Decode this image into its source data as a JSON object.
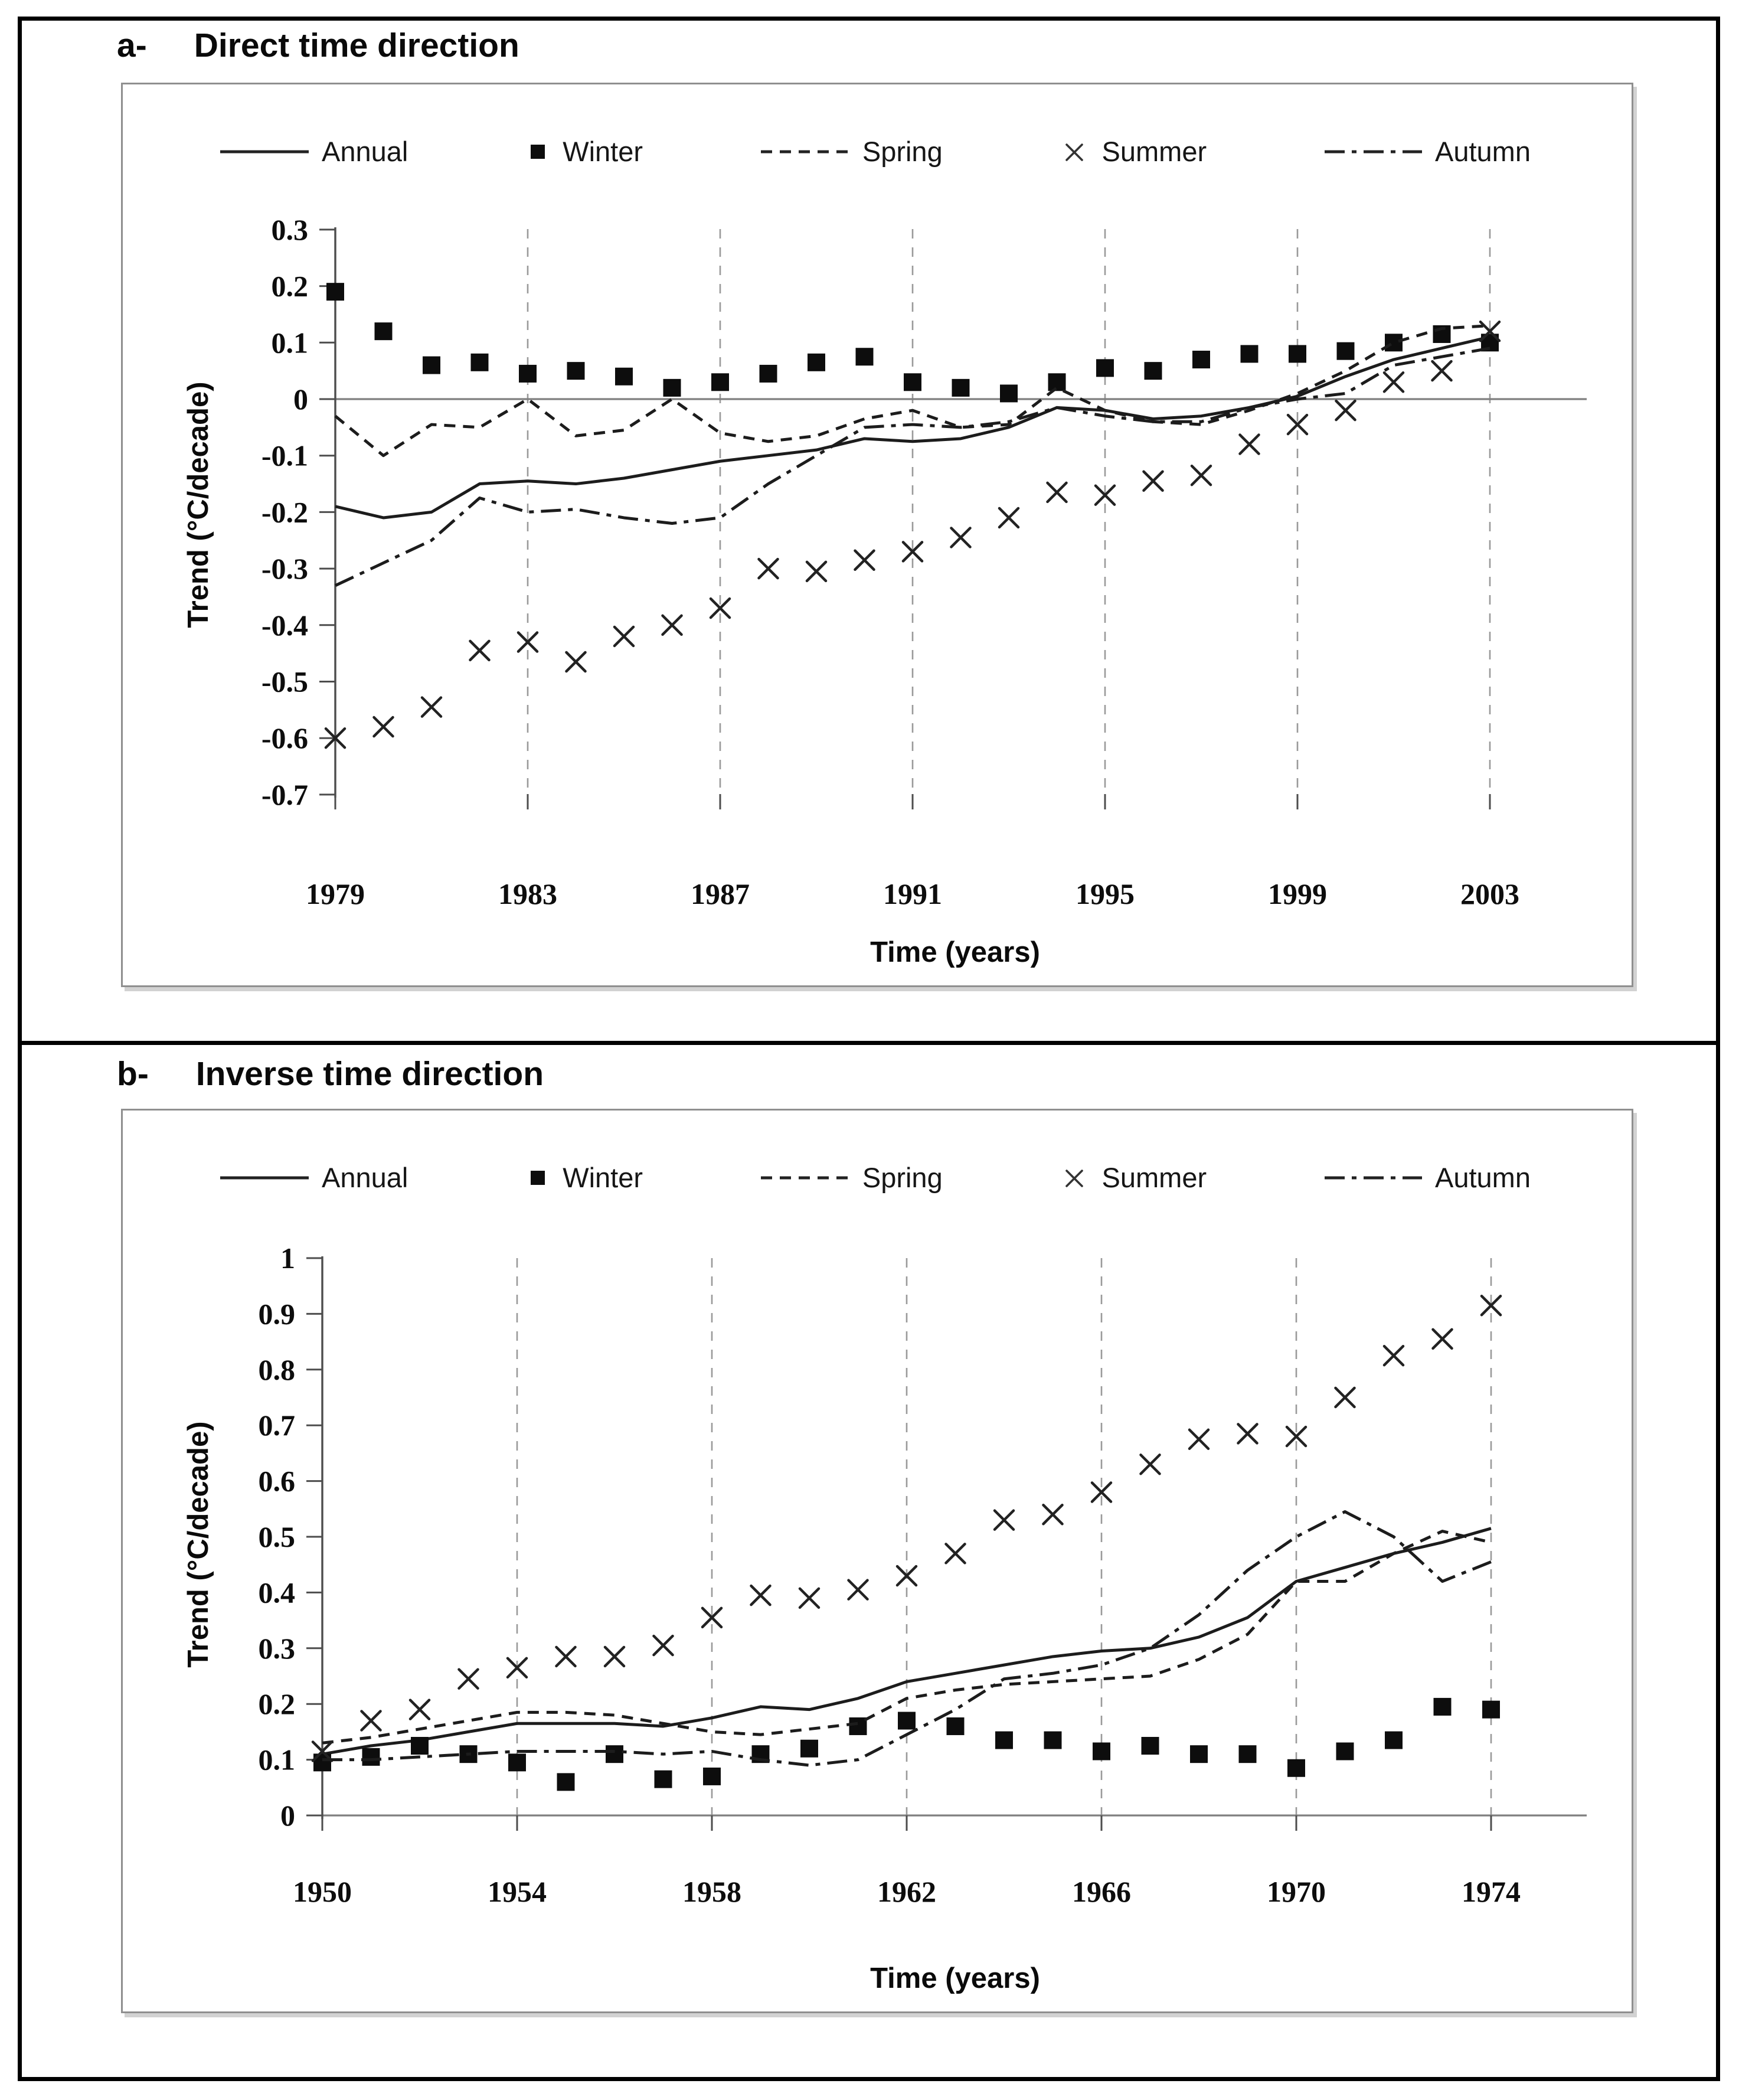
{
  "figure": {
    "ink_color": "#1c1c1c",
    "grid_color": "#9a9a9a",
    "zero_line_color": "#7f7f7f",
    "axis_color": "#4d4d4d"
  },
  "chart_data": [
    {
      "type": "line",
      "panel_label": "a-",
      "title": "Direct time direction",
      "xlabel": "Time (years)",
      "ylabel": "Trend (°C/decade)",
      "ylim": [
        -0.7,
        0.3
      ],
      "grid": "vertical-dashed",
      "legend_position": "top-center",
      "yticks": [
        "0.3",
        "0.2",
        "0.1",
        "0",
        "-0.1",
        "-0.2",
        "-0.3",
        "-0.4",
        "-0.5",
        "-0.6",
        "-0.7"
      ],
      "xticks": [
        1979,
        1983,
        1987,
        1991,
        1995,
        1999,
        2003
      ],
      "grid_years": [
        1983,
        1987,
        1991,
        1995,
        1999,
        2003
      ],
      "years": [
        1979,
        1980,
        1981,
        1982,
        1983,
        1984,
        1985,
        1986,
        1987,
        1988,
        1989,
        1990,
        1991,
        1992,
        1993,
        1994,
        1995,
        1996,
        1997,
        1998,
        1999,
        2000,
        2001,
        2002,
        2003
      ],
      "series": [
        {
          "name": "Annual",
          "style": "solid",
          "values": [
            -0.19,
            -0.21,
            -0.2,
            -0.15,
            -0.145,
            -0.15,
            -0.14,
            -0.125,
            -0.11,
            -0.1,
            -0.09,
            -0.07,
            -0.075,
            -0.07,
            -0.05,
            -0.015,
            -0.02,
            -0.035,
            -0.03,
            -0.015,
            0.005,
            0.04,
            0.07,
            0.09,
            0.11
          ]
        },
        {
          "name": "Winter",
          "style": "squares",
          "values": [
            0.19,
            0.12,
            0.06,
            0.065,
            0.045,
            0.05,
            0.04,
            0.02,
            0.03,
            0.045,
            0.065,
            0.075,
            0.03,
            0.02,
            0.01,
            0.03,
            0.055,
            0.05,
            0.07,
            0.08,
            0.08,
            0.085,
            0.1,
            0.115,
            0.1
          ]
        },
        {
          "name": "Spring",
          "style": "dashed",
          "values": [
            -0.03,
            -0.1,
            -0.045,
            -0.05,
            0.0,
            -0.065,
            -0.055,
            0.0,
            -0.06,
            -0.075,
            -0.065,
            -0.035,
            -0.02,
            -0.05,
            -0.045,
            0.02,
            -0.02,
            -0.04,
            -0.045,
            -0.02,
            0.01,
            0.05,
            0.1,
            0.125,
            0.13
          ]
        },
        {
          "name": "Summer",
          "style": "x-markers",
          "values": [
            -0.6,
            -0.58,
            -0.545,
            -0.445,
            -0.43,
            -0.465,
            -0.42,
            -0.4,
            -0.37,
            -0.3,
            -0.305,
            -0.285,
            -0.27,
            -0.245,
            -0.21,
            -0.165,
            -0.17,
            -0.145,
            -0.135,
            -0.08,
            -0.045,
            -0.02,
            0.03,
            0.05,
            0.12
          ]
        },
        {
          "name": "Autumn",
          "style": "dashdot",
          "values": [
            -0.33,
            -0.29,
            -0.25,
            -0.175,
            -0.2,
            -0.195,
            -0.21,
            -0.22,
            -0.21,
            -0.15,
            -0.1,
            -0.05,
            -0.045,
            -0.05,
            -0.04,
            -0.015,
            -0.03,
            -0.04,
            -0.04,
            -0.015,
            0.0,
            0.01,
            0.06,
            0.075,
            0.09
          ]
        }
      ]
    },
    {
      "type": "line",
      "panel_label": "b-",
      "title": "Inverse time direction",
      "xlabel": "Time (years)",
      "ylabel": "Trend (°C/decade)",
      "ylim": [
        0,
        1
      ],
      "grid": "vertical-dashed",
      "legend_position": "top-center",
      "yticks": [
        "1",
        "0.9",
        "0.8",
        "0.7",
        "0.6",
        "0.5",
        "0.4",
        "0.3",
        "0.2",
        "0.1",
        "0"
      ],
      "xticks": [
        1950,
        1954,
        1958,
        1962,
        1966,
        1970,
        1974
      ],
      "grid_years": [
        1954,
        1958,
        1962,
        1966,
        1970,
        1974
      ],
      "years": [
        1950,
        1951,
        1952,
        1953,
        1954,
        1955,
        1956,
        1957,
        1958,
        1959,
        1960,
        1961,
        1962,
        1963,
        1964,
        1965,
        1966,
        1967,
        1968,
        1969,
        1970,
        1971,
        1972,
        1973,
        1974
      ],
      "series": [
        {
          "name": "Annual",
          "style": "solid",
          "values": [
            0.11,
            0.125,
            0.135,
            0.15,
            0.165,
            0.165,
            0.165,
            0.16,
            0.175,
            0.195,
            0.19,
            0.21,
            0.24,
            0.255,
            0.27,
            0.285,
            0.295,
            0.3,
            0.32,
            0.355,
            0.42,
            0.445,
            0.47,
            0.49,
            0.515
          ]
        },
        {
          "name": "Winter",
          "style": "squares",
          "values": [
            0.095,
            0.105,
            0.125,
            0.11,
            0.095,
            0.06,
            0.11,
            0.065,
            0.07,
            0.11,
            0.12,
            0.16,
            0.17,
            0.16,
            0.135,
            0.135,
            0.115,
            0.125,
            0.11,
            0.11,
            0.085,
            0.115,
            0.135,
            0.195,
            0.19
          ]
        },
        {
          "name": "Spring",
          "style": "dashed",
          "values": [
            0.13,
            0.14,
            0.155,
            0.17,
            0.185,
            0.185,
            0.18,
            0.165,
            0.15,
            0.145,
            0.155,
            0.165,
            0.21,
            0.225,
            0.235,
            0.24,
            0.245,
            0.25,
            0.28,
            0.325,
            0.42,
            0.42,
            0.47,
            0.51,
            0.49
          ]
        },
        {
          "name": "Summer",
          "style": "x-markers",
          "values": [
            0.115,
            0.17,
            0.19,
            0.245,
            0.265,
            0.285,
            0.285,
            0.305,
            0.355,
            0.395,
            0.39,
            0.405,
            0.43,
            0.47,
            0.53,
            0.54,
            0.58,
            0.63,
            0.675,
            0.685,
            0.68,
            0.75,
            0.825,
            0.855,
            0.915
          ]
        },
        {
          "name": "Autumn",
          "style": "dashdot",
          "values": [
            0.1,
            0.1,
            0.105,
            0.11,
            0.115,
            0.115,
            0.115,
            0.11,
            0.115,
            0.1,
            0.09,
            0.1,
            0.145,
            0.19,
            0.245,
            0.255,
            0.27,
            0.3,
            0.36,
            0.44,
            0.5,
            0.545,
            0.5,
            0.42,
            0.455
          ]
        }
      ]
    }
  ]
}
